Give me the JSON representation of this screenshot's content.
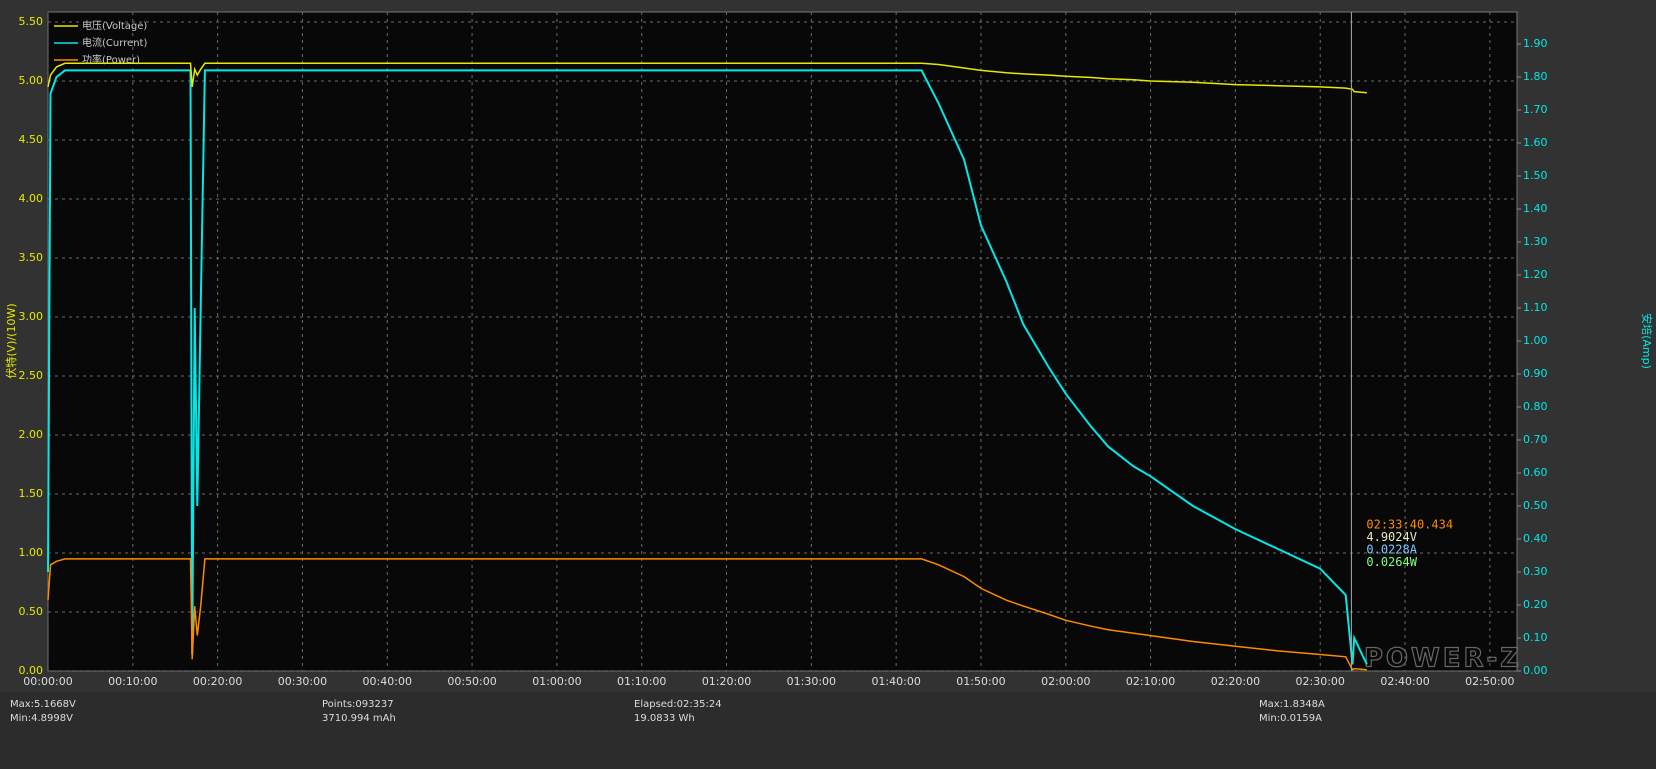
{
  "chart_data": {
    "type": "line",
    "y_label": "伏特(V)/(10W)",
    "y2_label": "安培(Amp)",
    "watermark": "POWER-Z",
    "grid": true,
    "legend": "top-left",
    "x": [
      0,
      0.3,
      1,
      2,
      16.8,
      17.0,
      17.3,
      17.6,
      18,
      18.5,
      19,
      30,
      50,
      70,
      90,
      100,
      103,
      105,
      108,
      110,
      113,
      115,
      118,
      120,
      123,
      125,
      128,
      130,
      135,
      140,
      145,
      150,
      153,
      153.8,
      154,
      155.5
    ],
    "series": [
      {
        "name": "电压(Voltage)",
        "color": "#e8e800",
        "axis": "y",
        "values": [
          4.95,
          5.05,
          5.12,
          5.15,
          5.15,
          4.95,
          5.1,
          5.05,
          5.1,
          5.15,
          5.15,
          5.15,
          5.15,
          5.15,
          5.15,
          5.15,
          5.15,
          5.14,
          5.11,
          5.09,
          5.07,
          5.06,
          5.05,
          5.04,
          5.03,
          5.02,
          5.01,
          5.0,
          4.99,
          4.97,
          4.96,
          4.95,
          4.94,
          4.93,
          4.91,
          4.9
        ]
      },
      {
        "name": "电流(Current)",
        "color": "#00e8e8",
        "axis": "y2",
        "values": [
          0.3,
          1.75,
          1.8,
          1.82,
          1.82,
          0.05,
          1.1,
          0.5,
          1.1,
          1.82,
          1.82,
          1.82,
          1.82,
          1.82,
          1.82,
          1.82,
          1.82,
          1.72,
          1.55,
          1.35,
          1.18,
          1.05,
          0.92,
          0.84,
          0.74,
          0.68,
          0.62,
          0.59,
          0.5,
          0.43,
          0.37,
          0.31,
          0.23,
          0.02,
          0.1,
          0.02
        ]
      },
      {
        "name": "功率(Power)",
        "color": "#ff8a00",
        "axis": "y",
        "values": [
          0.6,
          0.9,
          0.93,
          0.95,
          0.95,
          0.1,
          0.55,
          0.3,
          0.55,
          0.95,
          0.95,
          0.95,
          0.95,
          0.95,
          0.95,
          0.95,
          0.95,
          0.9,
          0.8,
          0.7,
          0.6,
          0.55,
          0.48,
          0.43,
          0.38,
          0.35,
          0.32,
          0.3,
          0.25,
          0.21,
          0.17,
          0.14,
          0.12,
          0.01,
          0.02,
          0.01
        ]
      }
    ],
    "xlim": [
      0,
      173.2
    ],
    "xticks": [
      {
        "value": 0,
        "label": "00:00:00"
      },
      {
        "value": 10,
        "label": "00:10:00"
      },
      {
        "value": 20,
        "label": "00:20:00"
      },
      {
        "value": 30,
        "label": "00:30:00"
      },
      {
        "value": 40,
        "label": "00:40:00"
      },
      {
        "value": 50,
        "label": "00:50:00"
      },
      {
        "value": 60,
        "label": "01:00:00"
      },
      {
        "value": 70,
        "label": "01:10:00"
      },
      {
        "value": 80,
        "label": "01:20:00"
      },
      {
        "value": 90,
        "label": "01:30:00"
      },
      {
        "value": 100,
        "label": "01:40:00"
      },
      {
        "value": 110,
        "label": "01:50:00"
      },
      {
        "value": 120,
        "label": "02:00:00"
      },
      {
        "value": 130,
        "label": "02:10:00"
      },
      {
        "value": 140,
        "label": "02:20:00"
      },
      {
        "value": 150,
        "label": "02:30:00"
      },
      {
        "value": 160,
        "label": "02:40:00"
      },
      {
        "value": 170,
        "label": "02:50:00"
      }
    ],
    "ylim": [
      0,
      5.585
    ],
    "yticks": [
      {
        "value": 0,
        "label": "0.00"
      },
      {
        "value": 0.5,
        "label": "0.50"
      },
      {
        "value": 1,
        "label": "1.00"
      },
      {
        "value": 1.5,
        "label": "1.50"
      },
      {
        "value": 2,
        "label": "2.00"
      },
      {
        "value": 2.5,
        "label": "2.50"
      },
      {
        "value": 3,
        "label": "3.00"
      },
      {
        "value": 3.5,
        "label": "3.50"
      },
      {
        "value": 4,
        "label": "4.00"
      },
      {
        "value": 4.5,
        "label": "4.50"
      },
      {
        "value": 5,
        "label": "5.00"
      },
      {
        "value": 5.5,
        "label": "5.50"
      }
    ],
    "y2lim": [
      0,
      1.997
    ],
    "y2ticks": [
      {
        "value": 0,
        "label": "0.00"
      },
      {
        "value": 0.1,
        "label": "0.10"
      },
      {
        "value": 0.2,
        "label": "0.20"
      },
      {
        "value": 0.3,
        "label": "0.30"
      },
      {
        "value": 0.4,
        "label": "0.40"
      },
      {
        "value": 0.5,
        "label": "0.50"
      },
      {
        "value": 0.6,
        "label": "0.60"
      },
      {
        "value": 0.7,
        "label": "0.70"
      },
      {
        "value": 0.8,
        "label": "0.80"
      },
      {
        "value": 0.9,
        "label": "0.90"
      },
      {
        "value": 1,
        "label": "1.00"
      },
      {
        "value": 1.1,
        "label": "1.10"
      },
      {
        "value": 1.2,
        "label": "1.20"
      },
      {
        "value": 1.3,
        "label": "1.30"
      },
      {
        "value": 1.4,
        "label": "1.40"
      },
      {
        "value": 1.5,
        "label": "1.50"
      },
      {
        "value": 1.6,
        "label": "1.60"
      },
      {
        "value": 1.7,
        "label": "1.70"
      },
      {
        "value": 1.8,
        "label": "1.80"
      },
      {
        "value": 1.9,
        "label": "1.90"
      }
    ],
    "cursor": {
      "time": {
        "value": 153.674,
        "label": "02:33:40.434"
      },
      "voltage": {
        "value": 4.9024,
        "label": "4.9024V"
      },
      "current": {
        "value": 0.0228,
        "label": "0.0228A"
      },
      "power": {
        "value": 0.0264,
        "label": "0.0264W"
      }
    },
    "stats": [
      "Max:5.1668V",
      "Min:4.8998V",
      "Points:093237",
      "3710.994 mAh",
      "Elapsed:02:35:24",
      "19.0833 Wh",
      "Max:1.8348A",
      "Min:0.0159A"
    ]
  }
}
